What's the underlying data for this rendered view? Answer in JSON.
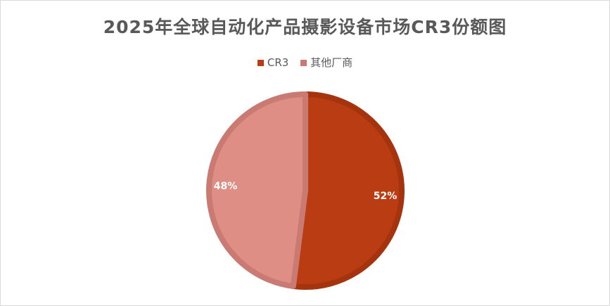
{
  "chart_data": {
    "type": "pie",
    "title": "2025年全球自动化产品摄影设备市场CR3份额图",
    "categories": [
      "CR3",
      "其他厂商"
    ],
    "values": [
      52,
      48
    ],
    "labels": [
      "52%",
      "48%"
    ],
    "colors": [
      "#B93C12",
      "#DE8E84"
    ],
    "border_colors": [
      "#A5340E",
      "#C97A72"
    ],
    "legend": "top"
  }
}
